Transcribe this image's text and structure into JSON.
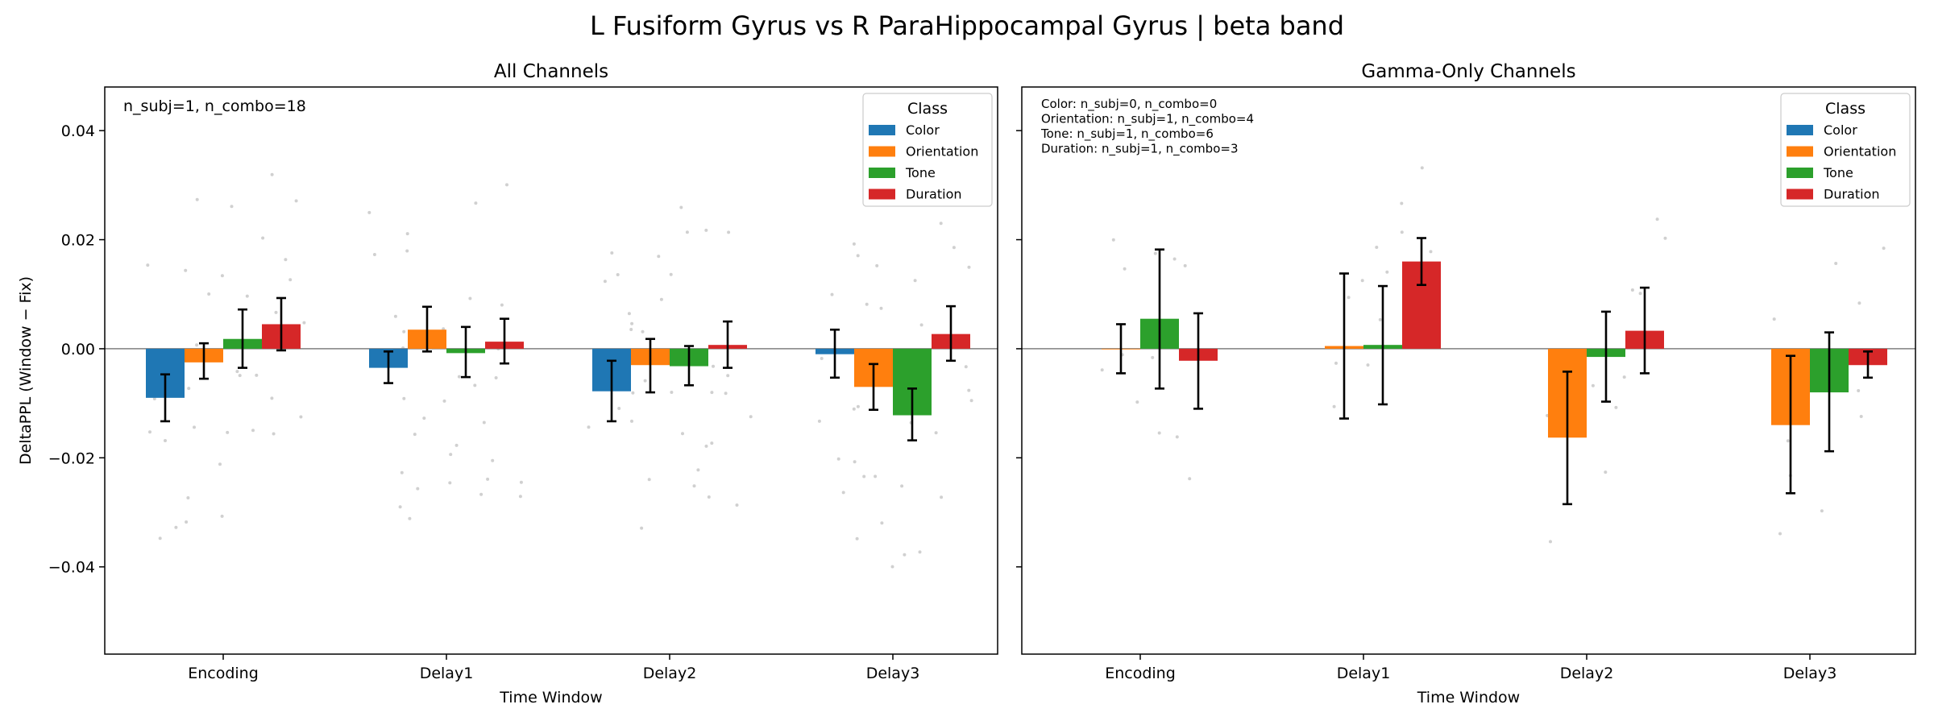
{
  "figure": {
    "title": "L Fusiform Gyrus vs R ParaHippocampal Gyrus  |  beta band"
  },
  "chart_data": [
    {
      "type": "bar",
      "title": "All Channels",
      "xlabel": "Time Window",
      "ylabel": "DeltaPPL (Window − Fix)",
      "ylim": [
        -0.056,
        0.048
      ],
      "yticks": [
        "0.04",
        "0.02",
        "0.00",
        "−0.02",
        "−0.04"
      ],
      "ytick_values": [
        0.04,
        0.02,
        0.0,
        -0.02,
        -0.04
      ],
      "categories": [
        "Encoding",
        "Delay1",
        "Delay2",
        "Delay3"
      ],
      "annotation": [
        "n_subj=1, n_combo=18"
      ],
      "legend": {
        "title": "Class",
        "placement": "top-right"
      },
      "series": [
        {
          "name": "Color",
          "color": "#1f77b4",
          "values": [
            -0.009,
            -0.0035,
            -0.0078,
            -0.001
          ],
          "err_low": [
            -0.0133,
            -0.0063,
            -0.0133,
            -0.0053
          ],
          "err_high": [
            -0.0047,
            -0.0005,
            -0.0022,
            0.0035
          ]
        },
        {
          "name": "Orientation",
          "color": "#ff7f0e",
          "values": [
            -0.0025,
            0.0035,
            -0.003,
            -0.007
          ],
          "err_low": [
            -0.0055,
            -0.0005,
            -0.008,
            -0.0112
          ],
          "err_high": [
            0.001,
            0.0077,
            0.0018,
            -0.0028
          ]
        },
        {
          "name": "Tone",
          "color": "#2ca02c",
          "values": [
            0.0018,
            -0.0008,
            -0.0032,
            -0.0122
          ],
          "err_low": [
            -0.0035,
            -0.0052,
            -0.0067,
            -0.0168
          ],
          "err_high": [
            0.0072,
            0.004,
            0.0005,
            -0.0073
          ]
        },
        {
          "name": "Duration",
          "color": "#d62728",
          "values": [
            0.0045,
            0.0013,
            0.0007,
            0.0027
          ],
          "err_low": [
            -0.0003,
            -0.0027,
            -0.0035,
            -0.0022
          ],
          "err_high": [
            0.0093,
            0.0055,
            0.005,
            0.0078
          ]
        }
      ]
    },
    {
      "type": "bar",
      "title": "Gamma-Only Channels",
      "xlabel": "Time Window",
      "ylim": [
        -0.056,
        0.048
      ],
      "categories": [
        "Encoding",
        "Delay1",
        "Delay2",
        "Delay3"
      ],
      "annotation": [
        "Color: n_subj=0, n_combo=0",
        "Orientation: n_subj=1, n_combo=4",
        "Tone: n_subj=1, n_combo=6",
        "Duration: n_subj=1, n_combo=3"
      ],
      "legend": {
        "title": "Class",
        "placement": "top-right"
      },
      "series": [
        {
          "name": "Color",
          "color": "#1f77b4",
          "values": [
            null,
            null,
            null,
            null
          ],
          "err_low": [
            null,
            null,
            null,
            null
          ],
          "err_high": [
            null,
            null,
            null,
            null
          ]
        },
        {
          "name": "Orientation",
          "color": "#ff7f0e",
          "values": [
            0.0,
            0.0005,
            -0.0163,
            -0.014
          ],
          "err_low": [
            -0.0045,
            -0.0128,
            -0.0285,
            -0.0265
          ],
          "err_high": [
            0.0045,
            0.0138,
            -0.0042,
            -0.0013
          ]
        },
        {
          "name": "Tone",
          "color": "#2ca02c",
          "values": [
            0.0055,
            0.0007,
            -0.0015,
            -0.008
          ],
          "err_low": [
            -0.0073,
            -0.0102,
            -0.0097,
            -0.0188
          ],
          "err_high": [
            0.0182,
            0.0115,
            0.0068,
            0.003
          ]
        },
        {
          "name": "Duration",
          "color": "#d62728",
          "values": [
            -0.0022,
            0.016,
            0.0033,
            -0.003
          ],
          "err_low": [
            -0.011,
            0.0117,
            -0.0045,
            -0.0053
          ],
          "err_high": [
            0.0065,
            0.0203,
            0.0112,
            -0.0005
          ]
        }
      ]
    }
  ]
}
